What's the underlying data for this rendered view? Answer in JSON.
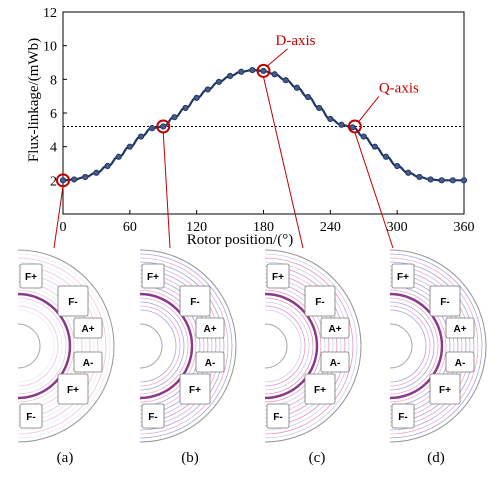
{
  "chart_data": {
    "type": "line",
    "xlabel": "Rotor position/(°)",
    "ylabel": "Flux-linkage/(mWb)",
    "xlim": [
      0,
      360
    ],
    "ylim": [
      0,
      12
    ],
    "xticks": [
      "0",
      "60",
      "120",
      "180",
      "240",
      "300",
      "360"
    ],
    "yticks": [
      "2",
      "4",
      "6",
      "8",
      "10",
      "12"
    ],
    "series": [
      {
        "x": [
          0,
          10,
          20,
          30,
          40,
          50,
          60,
          70,
          80,
          90,
          100,
          110,
          120,
          130,
          140,
          150,
          160,
          170,
          180,
          190,
          200,
          210,
          220,
          230,
          240,
          250,
          260,
          270,
          280,
          290,
          300,
          310,
          320,
          330,
          340,
          350,
          360
        ],
        "y": [
          2.0,
          2.05,
          2.2,
          2.45,
          2.85,
          3.4,
          4.0,
          4.6,
          5.1,
          5.2,
          5.75,
          6.3,
          6.9,
          7.4,
          7.85,
          8.2,
          8.45,
          8.55,
          8.5,
          8.3,
          7.95,
          7.5,
          6.95,
          6.3,
          5.65,
          5.3,
          5.15,
          4.6,
          4.0,
          3.4,
          2.85,
          2.45,
          2.2,
          2.05,
          2.0,
          2.0,
          2.0
        ]
      }
    ],
    "reference_line_y": 5.2,
    "annotations": [
      {
        "text": "D-axis",
        "x": 180,
        "y": 8.5
      },
      {
        "text": "Q-axis",
        "x": 262,
        "y": 5.2
      }
    ],
    "highlighted_points": [
      {
        "x": 0,
        "y": 2.0
      },
      {
        "x": 90,
        "y": 5.2
      },
      {
        "x": 180,
        "y": 8.5
      },
      {
        "x": 262,
        "y": 5.2
      }
    ],
    "grid": false
  },
  "panels": [
    {
      "label": "(a)"
    },
    {
      "label": "(b)"
    },
    {
      "label": "(c)"
    },
    {
      "label": "(d)"
    }
  ],
  "slot_labels": [
    "F+",
    "F-",
    "A+",
    "A-",
    "F+",
    "F-"
  ],
  "colors": {
    "line": "#1f3864",
    "annotation": "#c00000",
    "flux_pink": "#e08ab8",
    "flux_blue": "#5a5ac8",
    "rotor_ring": "#8b3a8b"
  }
}
